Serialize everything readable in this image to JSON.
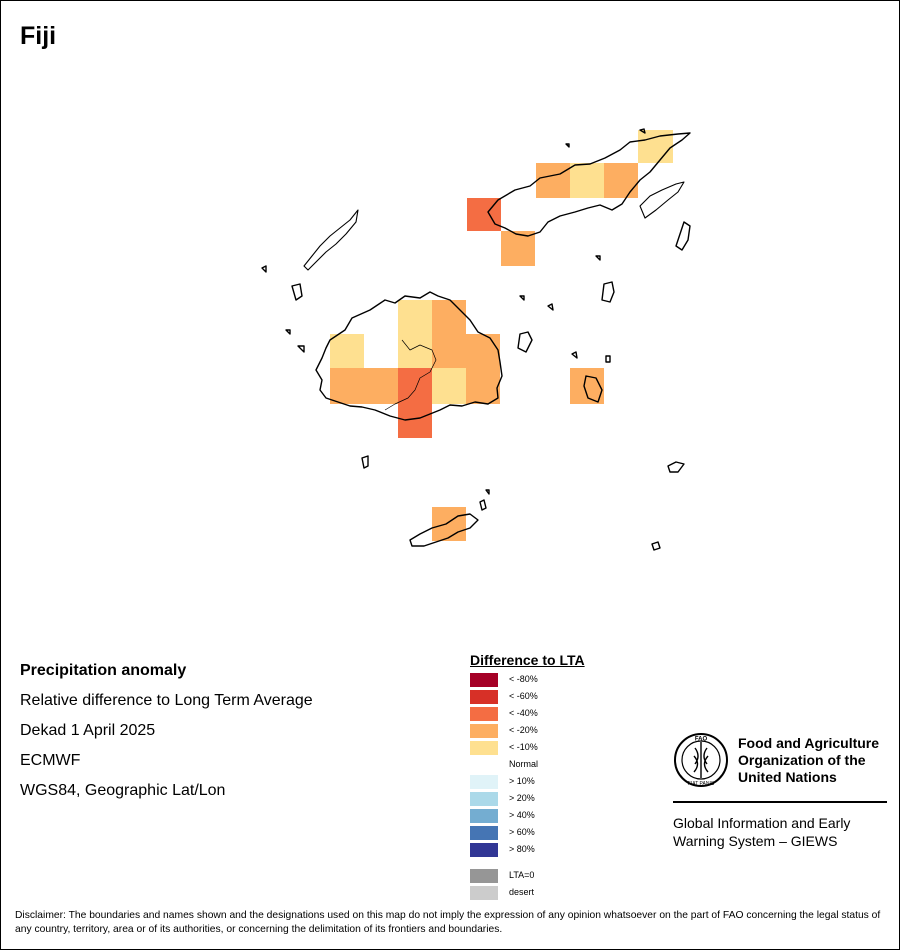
{
  "map": {
    "title": "Fiji"
  },
  "info": {
    "heading": "Precipitation anomaly",
    "line1": "Relative difference to Long Term Average",
    "line2": "Dekad 1 April 2025",
    "line3": "ECMWF",
    "line4": "WGS84, Geographic Lat/Lon"
  },
  "legend": {
    "title": "Difference to LTA",
    "items": [
      {
        "label": "< -80%",
        "color": "#a50026"
      },
      {
        "label": "< -60%",
        "color": "#d73027"
      },
      {
        "label": "< -40%",
        "color": "#f46d43"
      },
      {
        "label": "< -20%",
        "color": "#fdae61"
      },
      {
        "label": "< -10%",
        "color": "#fee090"
      },
      {
        "label": "Normal",
        "color": "#ffffff"
      },
      {
        "label": "> 10%",
        "color": "#e0f3f8"
      },
      {
        "label": "> 20%",
        "color": "#abd9e9"
      },
      {
        "label": "> 40%",
        "color": "#74add1"
      },
      {
        "label": "> 60%",
        "color": "#4575b4"
      },
      {
        "label": "> 80%",
        "color": "#313695"
      }
    ],
    "extra": [
      {
        "label": "LTA=0",
        "color": "#969696"
      },
      {
        "label": "desert",
        "color": "#cccccc"
      }
    ]
  },
  "fao": {
    "name_line1": "Food and Agriculture",
    "name_line2": "Organization of the",
    "name_line3": "United Nations",
    "logo_text_top": "FAO",
    "logo_text_bottom": "FIAT PANIS",
    "giews_line1": "Global Information and Early",
    "giews_line2": "Warning System – GIEWS"
  },
  "disclaimer": "Disclaimer: The boundaries and names shown and the designations used on this map do not imply the expression of any opinion whatsoever on the part of FAO concerning the legal status of any country, territory, area or of its authorities, or concerning the delimitation of its frontiers and boundaries."
}
